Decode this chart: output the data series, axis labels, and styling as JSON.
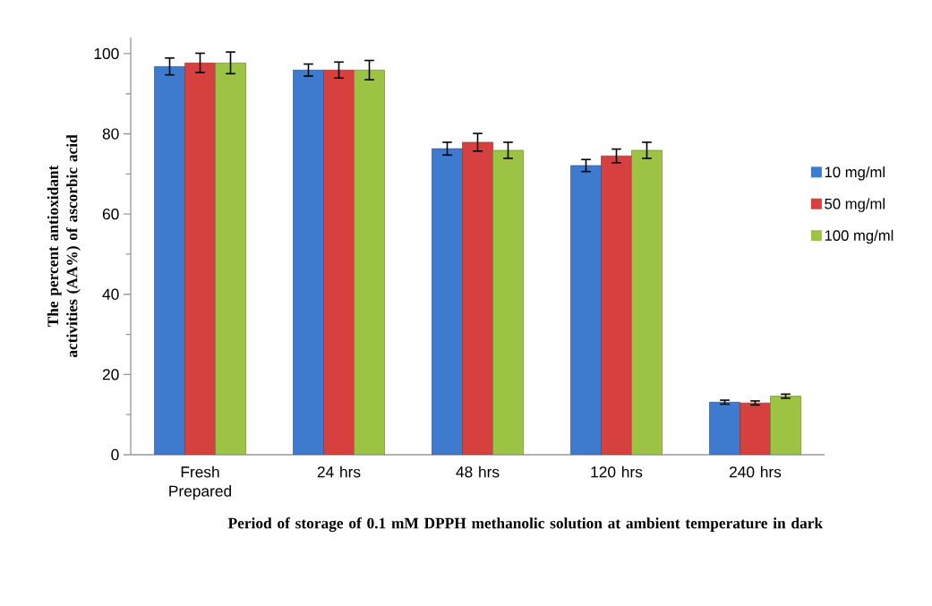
{
  "chart_data": {
    "type": "bar",
    "xlabel": "Period of storage of 0.1 mM DPPH methanolic solution at ambient temperature in dark",
    "ylabel": "The percent antioxidant activities (AA%) of ascorbic acid",
    "categories": [
      "Fresh Prepared",
      "24 hrs",
      "48 hrs",
      "120 hrs",
      "240 hrs"
    ],
    "series": [
      {
        "name": "10 mg/ml",
        "color": "#3e7bcf",
        "values": [
          96.8,
          95.9,
          76.3,
          72.1,
          13.1
        ],
        "errors": [
          2.1,
          1.5,
          1.6,
          1.5,
          0.5
        ]
      },
      {
        "name": "50 mg/ml",
        "color": "#d6413f",
        "values": [
          97.7,
          95.9,
          77.9,
          74.5,
          12.9
        ],
        "errors": [
          2.4,
          2.0,
          2.2,
          1.7,
          0.5
        ]
      },
      {
        "name": "100 mg/ml",
        "color": "#9cc343",
        "values": [
          97.7,
          95.9,
          75.9,
          75.9,
          14.6
        ],
        "errors": [
          2.7,
          2.4,
          2.0,
          2.0,
          0.5
        ]
      }
    ],
    "ylim": [
      0,
      104
    ],
    "yticks": [
      0,
      20,
      40,
      60,
      80,
      100
    ],
    "legend": "right"
  }
}
